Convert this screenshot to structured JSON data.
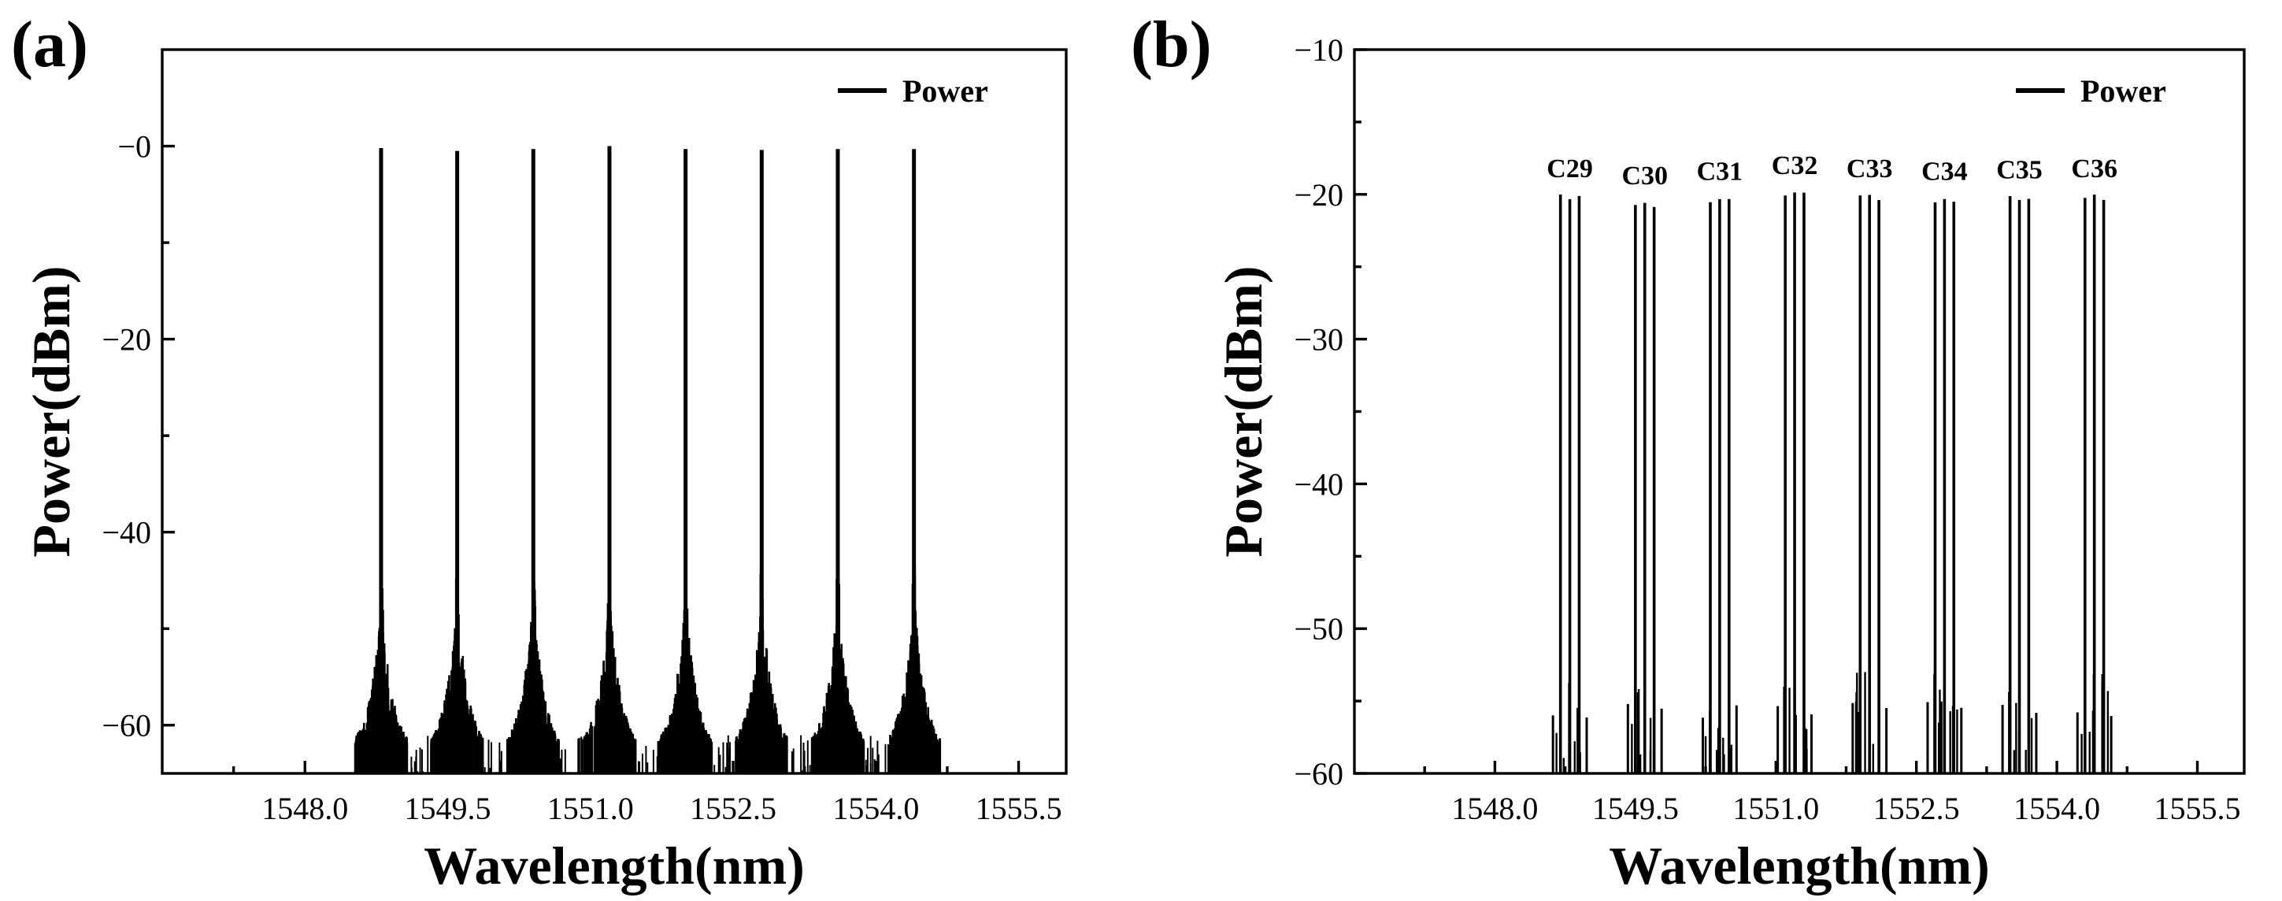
{
  "chart_data": [
    {
      "panel": "(a)",
      "type": "line",
      "title": "",
      "xlabel": "Wavelength(nm)",
      "ylabel": "Power(dBm)",
      "xlim": [
        1546.5,
        1556.0
      ],
      "ylim": [
        -65,
        10
      ],
      "xticks": [
        1548.0,
        1549.5,
        1551.0,
        1552.5,
        1554.0,
        1555.5
      ],
      "xtick_labels": [
        "1548.0",
        "1549.5",
        "1551.0",
        "1552.5",
        "1554.0",
        "1555.5"
      ],
      "yticks": [
        -60,
        -40,
        -20,
        0
      ],
      "ytick_labels": [
        "−60",
        "−40",
        "−20",
        "−0"
      ],
      "legend": {
        "entries": [
          "Power"
        ],
        "position": "top-right"
      },
      "series": [
        {
          "name": "Power",
          "peaks": [
            {
              "wavelength": 1548.8,
              "power": -0.2
            },
            {
              "wavelength": 1549.6,
              "power": -0.5
            },
            {
              "wavelength": 1550.4,
              "power": -0.3
            },
            {
              "wavelength": 1551.2,
              "power": 0.0
            },
            {
              "wavelength": 1552.0,
              "power": -0.3
            },
            {
              "wavelength": 1552.8,
              "power": -0.4
            },
            {
              "wavelength": 1553.6,
              "power": -0.3
            },
            {
              "wavelength": 1554.4,
              "power": -0.3
            }
          ],
          "noise_floor": -65,
          "pedestal_level": -56
        }
      ]
    },
    {
      "panel": "(b)",
      "type": "line",
      "title": "",
      "xlabel": "Wavelength(nm)",
      "ylabel": "Power(dBm)",
      "xlim": [
        1546.5,
        1556.0
      ],
      "ylim": [
        -60,
        -10
      ],
      "xticks": [
        1548.0,
        1549.5,
        1551.0,
        1552.5,
        1554.0,
        1555.5
      ],
      "xtick_labels": [
        "1548.0",
        "1549.5",
        "1551.0",
        "1552.5",
        "1554.0",
        "1555.5"
      ],
      "yticks": [
        -60,
        -50,
        -40,
        -30,
        -20,
        -10
      ],
      "ytick_labels": [
        "−60",
        "−50",
        "−40",
        "−30",
        "−20",
        "−10"
      ],
      "legend": {
        "entries": [
          "Power"
        ],
        "position": "top-right"
      },
      "series": [
        {
          "name": "Power",
          "channels": [
            {
              "label": "C29",
              "center": 1548.8,
              "power": -20.0
            },
            {
              "label": "C30",
              "center": 1549.6,
              "power": -20.5
            },
            {
              "label": "C31",
              "center": 1550.4,
              "power": -20.2
            },
            {
              "label": "C32",
              "center": 1551.2,
              "power": -19.8
            },
            {
              "label": "C33",
              "center": 1552.0,
              "power": -20.0
            },
            {
              "label": "C34",
              "center": 1552.8,
              "power": -20.2
            },
            {
              "label": "C35",
              "center": 1553.6,
              "power": -20.1
            },
            {
              "label": "C36",
              "center": 1554.4,
              "power": -20.0
            }
          ],
          "subcarrier_offsets": [
            -0.1,
            0.0,
            0.1
          ],
          "sideband_level": -55
        }
      ]
    }
  ]
}
